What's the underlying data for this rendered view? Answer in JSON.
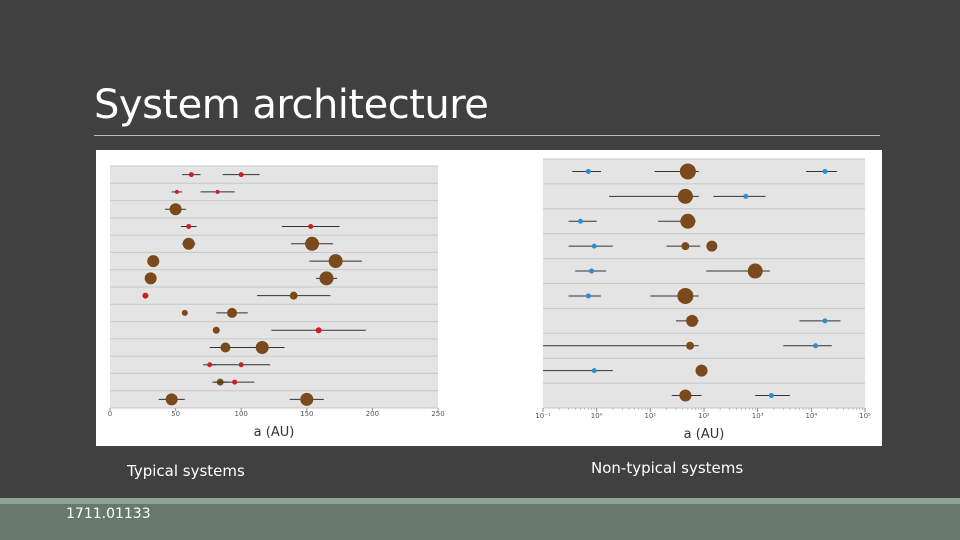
{
  "slide": {
    "title": "System architecture",
    "caption_left": "Typical systems",
    "caption_right": "Non-typical systems",
    "reference": "1711.01133"
  },
  "colors": {
    "background": "#404040",
    "title_rule": "#bdbdbd",
    "brown": "#7a4a1c",
    "red": "#cc2020",
    "blue": "#2a8fd0",
    "footer": "#66796c",
    "footer_accent": "#8fa391"
  },
  "chart_data": [
    {
      "type": "scatter",
      "title": "",
      "xlabel": "a (AU)",
      "ylabel": "",
      "xlim": [
        0,
        250
      ],
      "xticks": [
        0,
        50,
        100,
        150,
        200,
        250
      ],
      "xtick_labels": [
        "0",
        "50",
        "100",
        "150",
        "200",
        "250"
      ],
      "n_rows": 14,
      "grid": true,
      "planets": [
        {
          "row": 0,
          "a": 62,
          "err": 7,
          "size": 2.5,
          "color": "red"
        },
        {
          "row": 0,
          "a": 100,
          "err": 14,
          "size": 2.5,
          "color": "red"
        },
        {
          "row": 1,
          "a": 51,
          "err": 4,
          "size": 2,
          "color": "red"
        },
        {
          "row": 1,
          "a": 82,
          "err": 13,
          "size": 2,
          "color": "red"
        },
        {
          "row": 2,
          "a": 50,
          "err": 8,
          "size": 6,
          "color": "brown"
        },
        {
          "row": 3,
          "a": 60,
          "err": 6,
          "size": 2.5,
          "color": "red"
        },
        {
          "row": 3,
          "a": 153,
          "err": 22,
          "size": 2.5,
          "color": "red"
        },
        {
          "row": 4,
          "a": 60,
          "err": 5,
          "size": 6,
          "color": "brown"
        },
        {
          "row": 4,
          "a": 154,
          "err": 16,
          "size": 7,
          "color": "brown"
        },
        {
          "row": 5,
          "a": 33,
          "err": 4,
          "size": 6,
          "color": "brown"
        },
        {
          "row": 5,
          "a": 172,
          "err": 20,
          "size": 7,
          "color": "brown"
        },
        {
          "row": 6,
          "a": 31,
          "err": 4,
          "size": 6,
          "color": "brown"
        },
        {
          "row": 6,
          "a": 165,
          "err": 8,
          "size": 7,
          "color": "brown"
        },
        {
          "row": 7,
          "a": 27,
          "err": 2,
          "size": 3,
          "color": "red"
        },
        {
          "row": 7,
          "a": 140,
          "err": 28,
          "size": 4,
          "color": "brown"
        },
        {
          "row": 8,
          "a": 57,
          "err": 2,
          "size": 3,
          "color": "brown"
        },
        {
          "row": 8,
          "a": 93,
          "err": 12,
          "size": 5,
          "color": "brown"
        },
        {
          "row": 9,
          "a": 81,
          "err": 2,
          "size": 3.5,
          "color": "brown"
        },
        {
          "row": 9,
          "a": 159,
          "err": 36,
          "size": 3,
          "color": "red"
        },
        {
          "row": 10,
          "a": 88,
          "err": 12,
          "size": 5,
          "color": "brown"
        },
        {
          "row": 10,
          "a": 116,
          "err": 17,
          "size": 6.5,
          "color": "brown"
        },
        {
          "row": 11,
          "a": 76,
          "err": 5,
          "size": 2.5,
          "color": "red"
        },
        {
          "row": 11,
          "a": 100,
          "err": 22,
          "size": 2.5,
          "color": "red"
        },
        {
          "row": 12,
          "a": 84,
          "err": 6,
          "size": 3.5,
          "color": "brown"
        },
        {
          "row": 12,
          "a": 95,
          "err": 15,
          "size": 2.5,
          "color": "red"
        },
        {
          "row": 13,
          "a": 47,
          "err": 10,
          "size": 6,
          "color": "brown"
        },
        {
          "row": 13,
          "a": 150,
          "err": 13,
          "size": 6.5,
          "color": "brown"
        }
      ]
    },
    {
      "type": "scatter",
      "title": "",
      "xlabel": "a (AU)",
      "ylabel": "",
      "xscale": "log",
      "xlim_exp": [
        -1,
        5
      ],
      "xtick_exps": [
        -1,
        0,
        1,
        2,
        3,
        4,
        5
      ],
      "xtick_labels": [
        "10⁻¹",
        "10⁰",
        "10¹",
        "10²",
        "10³",
        "10⁴",
        "10⁵"
      ],
      "n_rows": 10,
      "grid": true,
      "planets": [
        {
          "row": 0,
          "a": 0.7,
          "lo": 0.35,
          "hi": 1.2,
          "size": 2.5,
          "color": "blue"
        },
        {
          "row": 0,
          "a": 50,
          "lo": 12,
          "hi": 80,
          "size": 8,
          "color": "brown"
        },
        {
          "row": 0,
          "a": 18000,
          "lo": 8000,
          "hi": 30000,
          "size": 2.5,
          "color": "blue"
        },
        {
          "row": 1,
          "a": 45,
          "lo": 1.7,
          "hi": 80,
          "size": 7.5,
          "color": "brown"
        },
        {
          "row": 1,
          "a": 600,
          "lo": 150,
          "hi": 1400,
          "size": 2.5,
          "color": "blue"
        },
        {
          "row": 2,
          "a": 0.5,
          "lo": 0.3,
          "hi": 1.0,
          "size": 2.5,
          "color": "blue"
        },
        {
          "row": 2,
          "a": 50,
          "lo": 14,
          "hi": 70,
          "size": 7.5,
          "color": "brown"
        },
        {
          "row": 3,
          "a": 0.9,
          "lo": 0.3,
          "hi": 2.0,
          "size": 2.5,
          "color": "blue"
        },
        {
          "row": 3,
          "a": 45,
          "lo": 20,
          "hi": 85,
          "size": 4,
          "color": "brown"
        },
        {
          "row": 3,
          "a": 140,
          "lo": 120,
          "hi": 170,
          "size": 5.5,
          "color": "brown"
        },
        {
          "row": 4,
          "a": 0.8,
          "lo": 0.4,
          "hi": 1.5,
          "size": 2.5,
          "color": "blue"
        },
        {
          "row": 4,
          "a": 900,
          "lo": 110,
          "hi": 1700,
          "size": 7.5,
          "color": "brown"
        },
        {
          "row": 5,
          "a": 0.7,
          "lo": 0.3,
          "hi": 1.2,
          "size": 2.5,
          "color": "blue"
        },
        {
          "row": 5,
          "a": 45,
          "lo": 10,
          "hi": 80,
          "size": 8,
          "color": "brown"
        },
        {
          "row": 6,
          "a": 60,
          "lo": 30,
          "hi": 80,
          "size": 6,
          "color": "brown"
        },
        {
          "row": 6,
          "a": 18000,
          "lo": 6000,
          "hi": 35000,
          "size": 2.5,
          "color": "blue"
        },
        {
          "row": 7,
          "a": 55,
          "lo": 0.1,
          "hi": 80,
          "size": 4,
          "color": "brown"
        },
        {
          "row": 7,
          "a": 12000,
          "lo": 3000,
          "hi": 24000,
          "size": 2.5,
          "color": "blue"
        },
        {
          "row": 8,
          "a": 0.9,
          "lo": 0.1,
          "hi": 2.0,
          "size": 2.5,
          "color": "blue"
        },
        {
          "row": 8,
          "a": 90,
          "lo": 70,
          "hi": 110,
          "size": 6,
          "color": "brown"
        },
        {
          "row": 9,
          "a": 45,
          "lo": 25,
          "hi": 90,
          "size": 6,
          "color": "brown"
        },
        {
          "row": 9,
          "a": 1800,
          "lo": 900,
          "hi": 4000,
          "size": 2.5,
          "color": "blue"
        }
      ]
    }
  ]
}
